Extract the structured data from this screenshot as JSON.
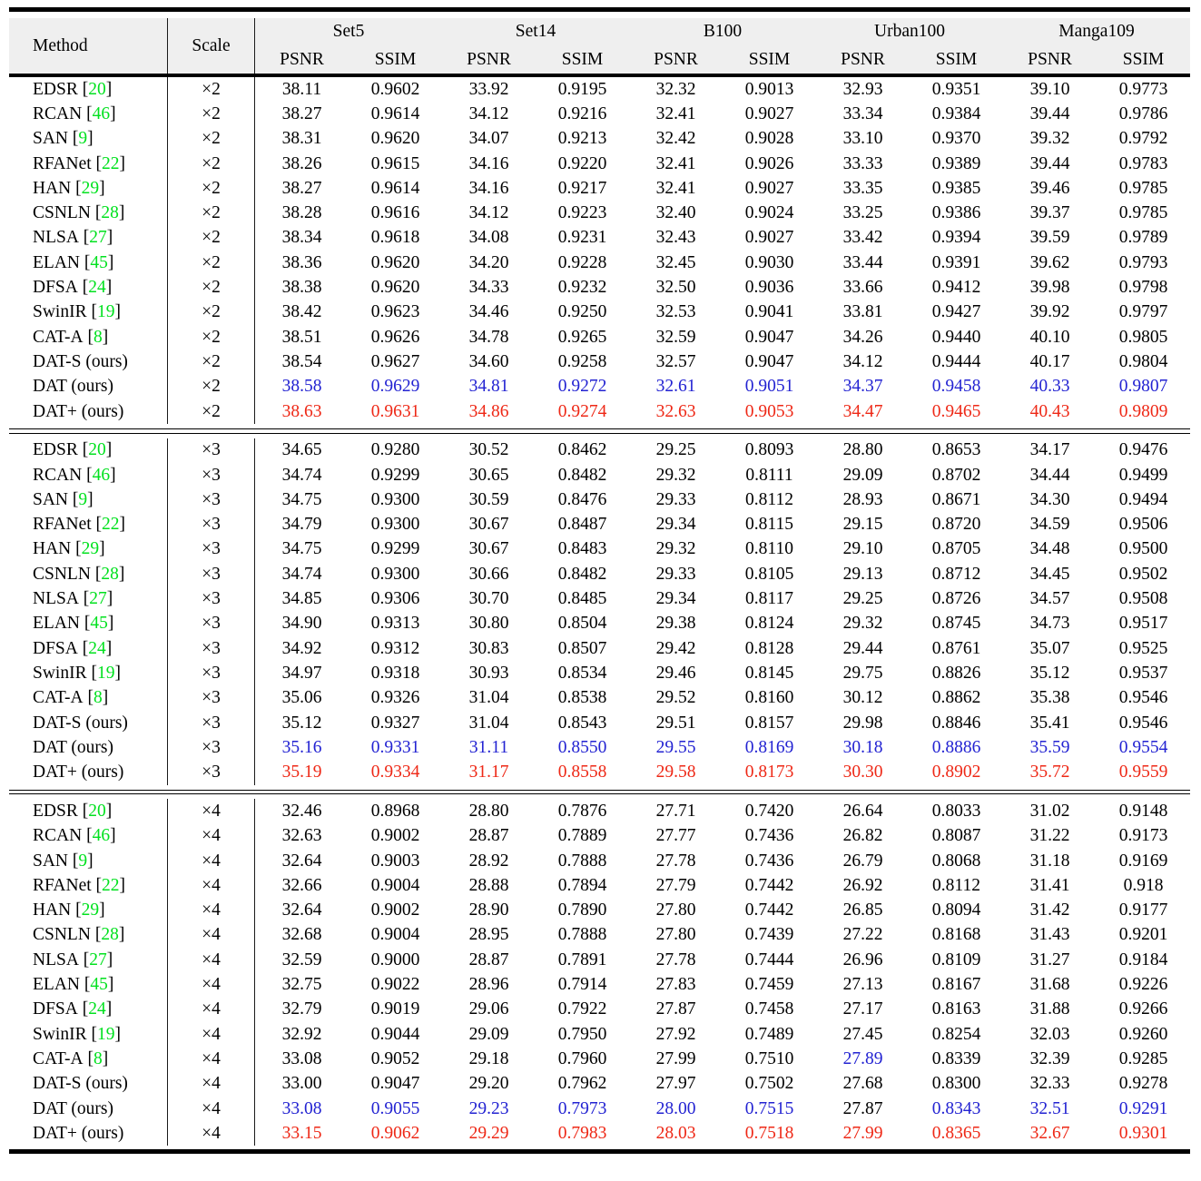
{
  "colors": {
    "citation_green": "#00e11e",
    "best_red": "#ee2816",
    "second_blue": "#2323d2",
    "header_bg": "#efefef",
    "rule_black": "#000000",
    "text_black": "#000000"
  },
  "table": {
    "header": {
      "method_label": "Method",
      "scale_label": "Scale",
      "datasets": [
        "Set5",
        "Set14",
        "B100",
        "Urban100",
        "Manga109"
      ],
      "metrics": [
        "PSNR",
        "SSIM"
      ]
    },
    "blocks": [
      {
        "scale": "×2",
        "rows": [
          {
            "method": "EDSR",
            "cite": "20",
            "v": [
              "38.11",
              "0.9602",
              "33.92",
              "0.9195",
              "32.32",
              "0.9013",
              "32.93",
              "0.9351",
              "39.10",
              "0.9773"
            ]
          },
          {
            "method": "RCAN",
            "cite": "46",
            "v": [
              "38.27",
              "0.9614",
              "34.12",
              "0.9216",
              "32.41",
              "0.9027",
              "33.34",
              "0.9384",
              "39.44",
              "0.9786"
            ]
          },
          {
            "method": "SAN",
            "cite": "9",
            "v": [
              "38.31",
              "0.9620",
              "34.07",
              "0.9213",
              "32.42",
              "0.9028",
              "33.10",
              "0.9370",
              "39.32",
              "0.9792"
            ]
          },
          {
            "method": "RFANet",
            "cite": "22",
            "v": [
              "38.26",
              "0.9615",
              "34.16",
              "0.9220",
              "32.41",
              "0.9026",
              "33.33",
              "0.9389",
              "39.44",
              "0.9783"
            ]
          },
          {
            "method": "HAN",
            "cite": "29",
            "v": [
              "38.27",
              "0.9614",
              "34.16",
              "0.9217",
              "32.41",
              "0.9027",
              "33.35",
              "0.9385",
              "39.46",
              "0.9785"
            ]
          },
          {
            "method": "CSNLN",
            "cite": "28",
            "v": [
              "38.28",
              "0.9616",
              "34.12",
              "0.9223",
              "32.40",
              "0.9024",
              "33.25",
              "0.9386",
              "39.37",
              "0.9785"
            ]
          },
          {
            "method": "NLSA",
            "cite": "27",
            "v": [
              "38.34",
              "0.9618",
              "34.08",
              "0.9231",
              "32.43",
              "0.9027",
              "33.42",
              "0.9394",
              "39.59",
              "0.9789"
            ]
          },
          {
            "method": "ELAN",
            "cite": "45",
            "v": [
              "38.36",
              "0.9620",
              "34.20",
              "0.9228",
              "32.45",
              "0.9030",
              "33.44",
              "0.9391",
              "39.62",
              "0.9793"
            ]
          },
          {
            "method": "DFSA",
            "cite": "24",
            "v": [
              "38.38",
              "0.9620",
              "34.33",
              "0.9232",
              "32.50",
              "0.9036",
              "33.66",
              "0.9412",
              "39.98",
              "0.9798"
            ]
          },
          {
            "method": "SwinIR",
            "cite": "19",
            "v": [
              "38.42",
              "0.9623",
              "34.46",
              "0.9250",
              "32.53",
              "0.9041",
              "33.81",
              "0.9427",
              "39.92",
              "0.9797"
            ]
          },
          {
            "method": "CAT-A",
            "cite": "8",
            "v": [
              "38.51",
              "0.9626",
              "34.78",
              "0.9265",
              "32.59",
              "0.9047",
              "34.26",
              "0.9440",
              "40.10",
              "0.9805"
            ]
          },
          {
            "method": "DAT-S (ours)",
            "v": [
              "38.54",
              "0.9627",
              "34.60",
              "0.9258",
              "32.57",
              "0.9047",
              "34.12",
              "0.9444",
              "40.17",
              "0.9804"
            ]
          },
          {
            "method": "DAT (ours)",
            "c": "b",
            "v": [
              "38.58",
              "0.9629",
              "34.81",
              "0.9272",
              "32.61",
              "0.9051",
              "34.37",
              "0.9458",
              "40.33",
              "0.9807"
            ]
          },
          {
            "method": "DAT+ (ours)",
            "c": "r",
            "v": [
              "38.63",
              "0.9631",
              "34.86",
              "0.9274",
              "32.63",
              "0.9053",
              "34.47",
              "0.9465",
              "40.43",
              "0.9809"
            ]
          }
        ]
      },
      {
        "scale": "×3",
        "rows": [
          {
            "method": "EDSR",
            "cite": "20",
            "v": [
              "34.65",
              "0.9280",
              "30.52",
              "0.8462",
              "29.25",
              "0.8093",
              "28.80",
              "0.8653",
              "34.17",
              "0.9476"
            ]
          },
          {
            "method": "RCAN",
            "cite": "46",
            "v": [
              "34.74",
              "0.9299",
              "30.65",
              "0.8482",
              "29.32",
              "0.8111",
              "29.09",
              "0.8702",
              "34.44",
              "0.9499"
            ]
          },
          {
            "method": "SAN",
            "cite": "9",
            "v": [
              "34.75",
              "0.9300",
              "30.59",
              "0.8476",
              "29.33",
              "0.8112",
              "28.93",
              "0.8671",
              "34.30",
              "0.9494"
            ]
          },
          {
            "method": "RFANet",
            "cite": "22",
            "v": [
              "34.79",
              "0.9300",
              "30.67",
              "0.8487",
              "29.34",
              "0.8115",
              "29.15",
              "0.8720",
              "34.59",
              "0.9506"
            ]
          },
          {
            "method": "HAN",
            "cite": "29",
            "v": [
              "34.75",
              "0.9299",
              "30.67",
              "0.8483",
              "29.32",
              "0.8110",
              "29.10",
              "0.8705",
              "34.48",
              "0.9500"
            ]
          },
          {
            "method": "CSNLN",
            "cite": "28",
            "v": [
              "34.74",
              "0.9300",
              "30.66",
              "0.8482",
              "29.33",
              "0.8105",
              "29.13",
              "0.8712",
              "34.45",
              "0.9502"
            ]
          },
          {
            "method": "NLSA",
            "cite": "27",
            "v": [
              "34.85",
              "0.9306",
              "30.70",
              "0.8485",
              "29.34",
              "0.8117",
              "29.25",
              "0.8726",
              "34.57",
              "0.9508"
            ]
          },
          {
            "method": "ELAN",
            "cite": "45",
            "v": [
              "34.90",
              "0.9313",
              "30.80",
              "0.8504",
              "29.38",
              "0.8124",
              "29.32",
              "0.8745",
              "34.73",
              "0.9517"
            ]
          },
          {
            "method": "DFSA",
            "cite": "24",
            "v": [
              "34.92",
              "0.9312",
              "30.83",
              "0.8507",
              "29.42",
              "0.8128",
              "29.44",
              "0.8761",
              "35.07",
              "0.9525"
            ]
          },
          {
            "method": "SwinIR",
            "cite": "19",
            "v": [
              "34.97",
              "0.9318",
              "30.93",
              "0.8534",
              "29.46",
              "0.8145",
              "29.75",
              "0.8826",
              "35.12",
              "0.9537"
            ]
          },
          {
            "method": "CAT-A",
            "cite": "8",
            "v": [
              "35.06",
              "0.9326",
              "31.04",
              "0.8538",
              "29.52",
              "0.8160",
              "30.12",
              "0.8862",
              "35.38",
              "0.9546"
            ]
          },
          {
            "method": "DAT-S (ours)",
            "v": [
              "35.12",
              "0.9327",
              "31.04",
              "0.8543",
              "29.51",
              "0.8157",
              "29.98",
              "0.8846",
              "35.41",
              "0.9546"
            ]
          },
          {
            "method": "DAT (ours)",
            "c": "b",
            "v": [
              "35.16",
              "0.9331",
              "31.11",
              "0.8550",
              "29.55",
              "0.8169",
              "30.18",
              "0.8886",
              "35.59",
              "0.9554"
            ]
          },
          {
            "method": "DAT+ (ours)",
            "c": "r",
            "v": [
              "35.19",
              "0.9334",
              "31.17",
              "0.8558",
              "29.58",
              "0.8173",
              "30.30",
              "0.8902",
              "35.72",
              "0.9559"
            ]
          }
        ]
      },
      {
        "scale": "×4",
        "rows": [
          {
            "method": "EDSR",
            "cite": "20",
            "v": [
              "32.46",
              "0.8968",
              "28.80",
              "0.7876",
              "27.71",
              "0.7420",
              "26.64",
              "0.8033",
              "31.02",
              "0.9148"
            ]
          },
          {
            "method": "RCAN",
            "cite": "46",
            "v": [
              "32.63",
              "0.9002",
              "28.87",
              "0.7889",
              "27.77",
              "0.7436",
              "26.82",
              "0.8087",
              "31.22",
              "0.9173"
            ]
          },
          {
            "method": "SAN",
            "cite": "9",
            "v": [
              "32.64",
              "0.9003",
              "28.92",
              "0.7888",
              "27.78",
              "0.7436",
              "26.79",
              "0.8068",
              "31.18",
              "0.9169"
            ]
          },
          {
            "method": "RFANet",
            "cite": "22",
            "v": [
              "32.66",
              "0.9004",
              "28.88",
              "0.7894",
              "27.79",
              "0.7442",
              "26.92",
              "0.8112",
              "31.41",
              "0.918"
            ]
          },
          {
            "method": "HAN",
            "cite": "29",
            "v": [
              "32.64",
              "0.9002",
              "28.90",
              "0.7890",
              "27.80",
              "0.7442",
              "26.85",
              "0.8094",
              "31.42",
              "0.9177"
            ]
          },
          {
            "method": "CSNLN",
            "cite": "28",
            "v": [
              "32.68",
              "0.9004",
              "28.95",
              "0.7888",
              "27.80",
              "0.7439",
              "27.22",
              "0.8168",
              "31.43",
              "0.9201"
            ]
          },
          {
            "method": "NLSA",
            "cite": "27",
            "v": [
              "32.59",
              "0.9000",
              "28.87",
              "0.7891",
              "27.78",
              "0.7444",
              "26.96",
              "0.8109",
              "31.27",
              "0.9184"
            ]
          },
          {
            "method": "ELAN",
            "cite": "45",
            "v": [
              "32.75",
              "0.9022",
              "28.96",
              "0.7914",
              "27.83",
              "0.7459",
              "27.13",
              "0.8167",
              "31.68",
              "0.9226"
            ]
          },
          {
            "method": "DFSA",
            "cite": "24",
            "v": [
              "32.79",
              "0.9019",
              "29.06",
              "0.7922",
              "27.87",
              "0.7458",
              "27.17",
              "0.8163",
              "31.88",
              "0.9266"
            ]
          },
          {
            "method": "SwinIR",
            "cite": "19",
            "v": [
              "32.92",
              "0.9044",
              "29.09",
              "0.7950",
              "27.92",
              "0.7489",
              "27.45",
              "0.8254",
              "32.03",
              "0.9260"
            ]
          },
          {
            "method": "CAT-A",
            "cite": "8",
            "c": [
              "k",
              "k",
              "k",
              "k",
              "k",
              "k",
              "b",
              "k",
              "k",
              "k"
            ],
            "v": [
              "33.08",
              "0.9052",
              "29.18",
              "0.7960",
              "27.99",
              "0.7510",
              "27.89",
              "0.8339",
              "32.39",
              "0.9285"
            ]
          },
          {
            "method": "DAT-S (ours)",
            "v": [
              "33.00",
              "0.9047",
              "29.20",
              "0.7962",
              "27.97",
              "0.7502",
              "27.68",
              "0.8300",
              "32.33",
              "0.9278"
            ]
          },
          {
            "method": "DAT (ours)",
            "c": [
              "b",
              "b",
              "b",
              "b",
              "b",
              "b",
              "k",
              "b",
              "b",
              "b"
            ],
            "v": [
              "33.08",
              "0.9055",
              "29.23",
              "0.7973",
              "28.00",
              "0.7515",
              "27.87",
              "0.8343",
              "32.51",
              "0.9291"
            ]
          },
          {
            "method": "DAT+ (ours)",
            "c": "r",
            "v": [
              "33.15",
              "0.9062",
              "29.29",
              "0.7983",
              "28.03",
              "0.7518",
              "27.99",
              "0.8365",
              "32.67",
              "0.9301"
            ]
          }
        ]
      }
    ]
  }
}
